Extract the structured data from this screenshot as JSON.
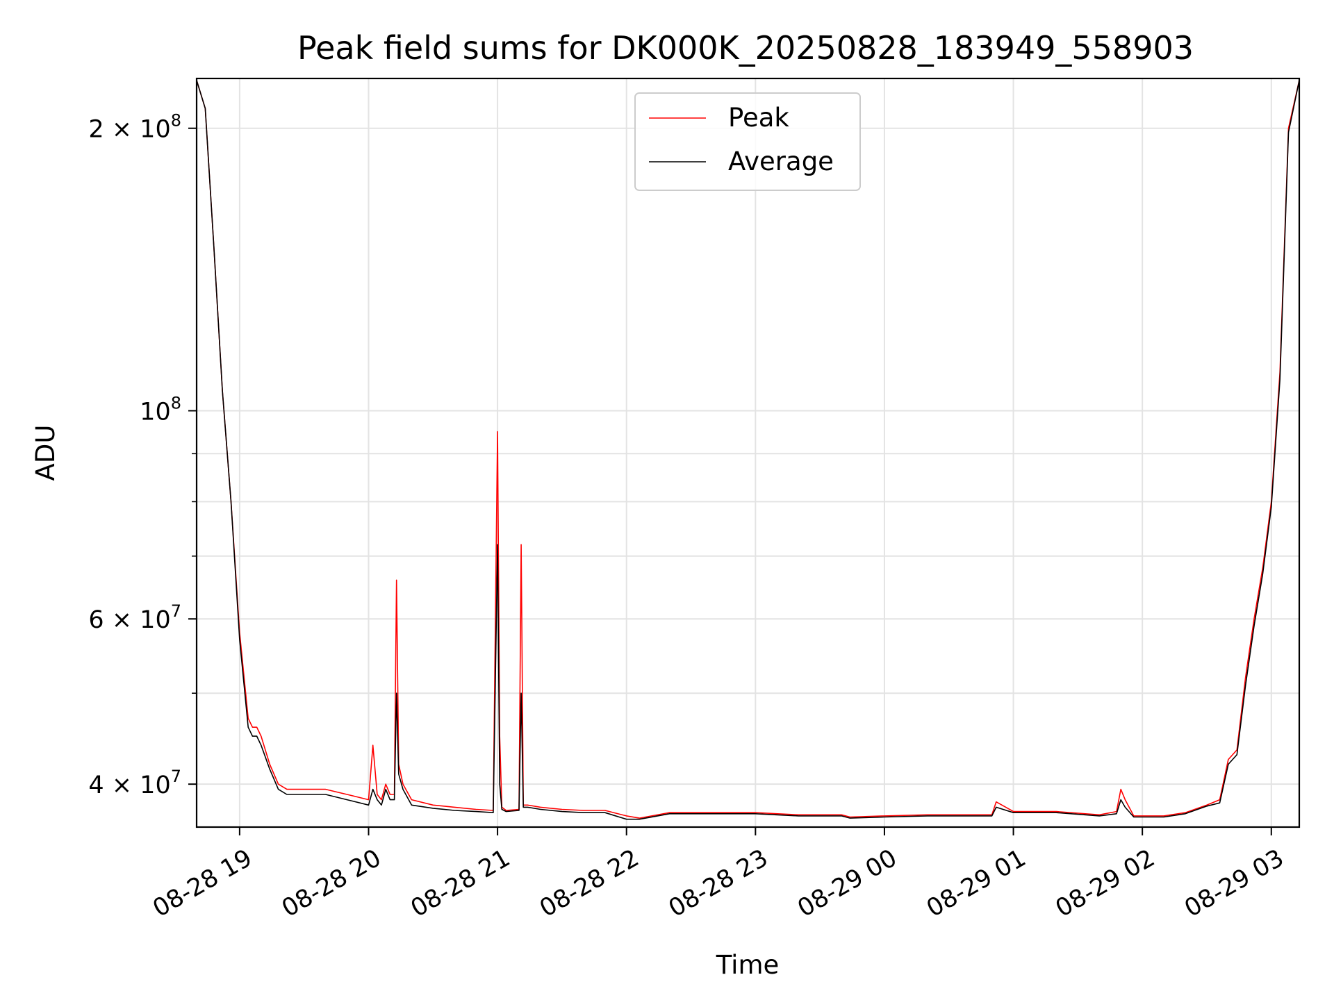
{
  "chart_data": {
    "type": "line",
    "title": "Peak field sums for DK000K_20250828_183949_558903",
    "xlabel": "Time",
    "ylabel": "ADU",
    "yscale": "log",
    "ylim": [
      36000000,
      226000000
    ],
    "xlim": [
      "2025-08-28 18:40",
      "2025-08-29 03:13"
    ],
    "grid": true,
    "legend": "upper center",
    "x_ticks": [
      {
        "value": "2025-08-28 19:00",
        "label": "08-28 19"
      },
      {
        "value": "2025-08-28 20:00",
        "label": "08-28 20"
      },
      {
        "value": "2025-08-28 21:00",
        "label": "08-28 21"
      },
      {
        "value": "2025-08-28 22:00",
        "label": "08-28 22"
      },
      {
        "value": "2025-08-28 23:00",
        "label": "08-28 23"
      },
      {
        "value": "2025-08-29 00:00",
        "label": "08-29 00"
      },
      {
        "value": "2025-08-29 01:00",
        "label": "08-29 01"
      },
      {
        "value": "2025-08-29 02:00",
        "label": "08-29 02"
      },
      {
        "value": "2025-08-29 03:00",
        "label": "08-29 03"
      }
    ],
    "y_ticks": [
      {
        "value": 200000000,
        "base": "2",
        "times": "×",
        "pow": "10",
        "exp": "8"
      },
      {
        "value": 100000000,
        "base": "",
        "times": "",
        "pow": "10",
        "exp": "8"
      },
      {
        "value": 60000000,
        "base": "6",
        "times": "×",
        "pow": "10",
        "exp": "7"
      },
      {
        "value": 40000000,
        "base": "4",
        "times": "×",
        "pow": "10",
        "exp": "7"
      }
    ],
    "y_minor_ticks": [
      50000000,
      70000000,
      80000000,
      90000000,
      300000000
    ],
    "series": [
      {
        "name": "Peak",
        "color": "#ff0000",
        "x": [
          "2025-08-28 18:40",
          "2025-08-28 18:44",
          "2025-08-28 18:48",
          "2025-08-28 18:52",
          "2025-08-28 18:56",
          "2025-08-28 19:00",
          "2025-08-28 19:04",
          "2025-08-28 19:06",
          "2025-08-28 19:08",
          "2025-08-28 19:10",
          "2025-08-28 19:14",
          "2025-08-28 19:18",
          "2025-08-28 19:22",
          "2025-08-28 19:30",
          "2025-08-28 19:40",
          "2025-08-28 19:50",
          "2025-08-28 20:00",
          "2025-08-28 20:02",
          "2025-08-28 20:04",
          "2025-08-28 20:06",
          "2025-08-28 20:08",
          "2025-08-28 20:10",
          "2025-08-28 20:12",
          "2025-08-28 20:13",
          "2025-08-28 20:14",
          "2025-08-28 20:16",
          "2025-08-28 20:20",
          "2025-08-28 20:30",
          "2025-08-28 20:40",
          "2025-08-28 20:50",
          "2025-08-28 20:58",
          "2025-08-28 21:00",
          "2025-08-28 21:01",
          "2025-08-28 21:02",
          "2025-08-28 21:04",
          "2025-08-28 21:10",
          "2025-08-28 21:11",
          "2025-08-28 21:12",
          "2025-08-28 21:14",
          "2025-08-28 21:20",
          "2025-08-28 21:30",
          "2025-08-28 21:40",
          "2025-08-28 21:50",
          "2025-08-28 22:00",
          "2025-08-28 22:06",
          "2025-08-28 22:20",
          "2025-08-28 22:40",
          "2025-08-28 23:00",
          "2025-08-28 23:20",
          "2025-08-28 23:40",
          "2025-08-28 23:44",
          "2025-08-29 00:00",
          "2025-08-29 00:20",
          "2025-08-29 00:40",
          "2025-08-29 00:50",
          "2025-08-29 00:52",
          "2025-08-29 01:00",
          "2025-08-29 01:20",
          "2025-08-29 01:40",
          "2025-08-29 01:48",
          "2025-08-29 01:50",
          "2025-08-29 01:52",
          "2025-08-29 01:56",
          "2025-08-29 02:00",
          "2025-08-29 02:10",
          "2025-08-29 02:20",
          "2025-08-29 02:30",
          "2025-08-29 02:36",
          "2025-08-29 02:40",
          "2025-08-29 02:44",
          "2025-08-29 02:48",
          "2025-08-29 02:52",
          "2025-08-29 02:56",
          "2025-08-29 03:00",
          "2025-08-29 03:04",
          "2025-08-29 03:08",
          "2025-08-29 03:13"
        ],
        "y": [
          225000000,
          210000000,
          150000000,
          105000000,
          80000000,
          58000000,
          47000000,
          46000000,
          46000000,
          45000000,
          42000000,
          40000000,
          39500000,
          39500000,
          39500000,
          39000000,
          38500000,
          44000000,
          39000000,
          38500000,
          40000000,
          39000000,
          39000000,
          66000000,
          42000000,
          40000000,
          38500000,
          38000000,
          37800000,
          37600000,
          37500000,
          95000000,
          45000000,
          37800000,
          37500000,
          37600000,
          72000000,
          38000000,
          38000000,
          37800000,
          37600000,
          37500000,
          37500000,
          37000000,
          36800000,
          37300000,
          37300000,
          37300000,
          37100000,
          37100000,
          36900000,
          37000000,
          37100000,
          37100000,
          37100000,
          38300000,
          37400000,
          37400000,
          37100000,
          37400000,
          39500000,
          38500000,
          37000000,
          37000000,
          37000000,
          37300000,
          38000000,
          38500000,
          42500000,
          43500000,
          52000000,
          60000000,
          68000000,
          80000000,
          110000000,
          200000000,
          225000000
        ]
      },
      {
        "name": "Average",
        "color": "#000000",
        "x": [
          "2025-08-28 18:40",
          "2025-08-28 18:44",
          "2025-08-28 18:48",
          "2025-08-28 18:52",
          "2025-08-28 18:56",
          "2025-08-28 19:00",
          "2025-08-28 19:04",
          "2025-08-28 19:06",
          "2025-08-28 19:08",
          "2025-08-28 19:10",
          "2025-08-28 19:14",
          "2025-08-28 19:18",
          "2025-08-28 19:22",
          "2025-08-28 19:30",
          "2025-08-28 19:40",
          "2025-08-28 19:50",
          "2025-08-28 20:00",
          "2025-08-28 20:02",
          "2025-08-28 20:04",
          "2025-08-28 20:06",
          "2025-08-28 20:08",
          "2025-08-28 20:10",
          "2025-08-28 20:12",
          "2025-08-28 20:13",
          "2025-08-28 20:14",
          "2025-08-28 20:16",
          "2025-08-28 20:20",
          "2025-08-28 20:30",
          "2025-08-28 20:40",
          "2025-08-28 20:50",
          "2025-08-28 20:58",
          "2025-08-28 21:00",
          "2025-08-28 21:01",
          "2025-08-28 21:02",
          "2025-08-28 21:04",
          "2025-08-28 21:10",
          "2025-08-28 21:11",
          "2025-08-28 21:12",
          "2025-08-28 21:14",
          "2025-08-28 21:20",
          "2025-08-28 21:30",
          "2025-08-28 21:40",
          "2025-08-28 21:50",
          "2025-08-28 22:00",
          "2025-08-28 22:06",
          "2025-08-28 22:20",
          "2025-08-28 22:40",
          "2025-08-28 23:00",
          "2025-08-28 23:20",
          "2025-08-28 23:40",
          "2025-08-28 23:44",
          "2025-08-29 00:00",
          "2025-08-29 00:20",
          "2025-08-29 00:40",
          "2025-08-29 00:50",
          "2025-08-29 00:52",
          "2025-08-29 01:00",
          "2025-08-29 01:20",
          "2025-08-29 01:40",
          "2025-08-29 01:48",
          "2025-08-29 01:50",
          "2025-08-29 01:52",
          "2025-08-29 01:56",
          "2025-08-29 02:00",
          "2025-08-29 02:10",
          "2025-08-29 02:20",
          "2025-08-29 02:30",
          "2025-08-29 02:36",
          "2025-08-29 02:40",
          "2025-08-29 02:44",
          "2025-08-29 02:48",
          "2025-08-29 02:52",
          "2025-08-29 02:56",
          "2025-08-29 03:00",
          "2025-08-29 03:04",
          "2025-08-29 03:08",
          "2025-08-29 03:13"
        ],
        "y": [
          225000000,
          210000000,
          150000000,
          105000000,
          80000000,
          57000000,
          46000000,
          45000000,
          45000000,
          44000000,
          41500000,
          39500000,
          39000000,
          39000000,
          39000000,
          38500000,
          38000000,
          39500000,
          38500000,
          38000000,
          39500000,
          38500000,
          38500000,
          50000000,
          41000000,
          39500000,
          38000000,
          37700000,
          37500000,
          37400000,
          37300000,
          72000000,
          40000000,
          37600000,
          37400000,
          37500000,
          50000000,
          37800000,
          37800000,
          37600000,
          37400000,
          37300000,
          37300000,
          36700000,
          36700000,
          37200000,
          37200000,
          37200000,
          37000000,
          37000000,
          36800000,
          36900000,
          37000000,
          37000000,
          37000000,
          37800000,
          37300000,
          37300000,
          37000000,
          37200000,
          38500000,
          37800000,
          36900000,
          36900000,
          36900000,
          37200000,
          37900000,
          38200000,
          42000000,
          43000000,
          51000000,
          59000000,
          67000000,
          79000000,
          108000000,
          198000000,
          225000000
        ]
      }
    ]
  }
}
